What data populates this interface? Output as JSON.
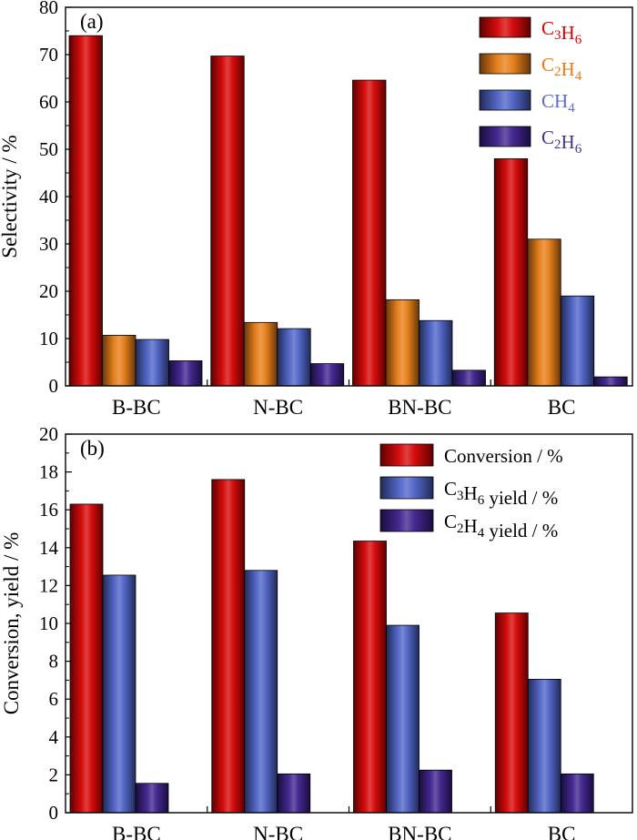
{
  "chart_data": [
    {
      "type": "bar",
      "panel_label": "(a)",
      "categories": [
        "B-BC",
        "N-BC",
        "BN-BC",
        "BC"
      ],
      "ylabel": "Selectivity / %",
      "ylim": [
        0,
        80
      ],
      "yticks": [
        "0",
        "10",
        "20",
        "30",
        "40",
        "50",
        "60",
        "70",
        "80"
      ],
      "legend_position": "top-right",
      "grid": false,
      "series": [
        {
          "name": "C3H6",
          "name_base": [
            "C",
            "H"
          ],
          "name_subs": [
            "3",
            "6"
          ],
          "color": "#d40000",
          "legend_text_color": "#e00000",
          "values": [
            74,
            69.7,
            64.6,
            48
          ]
        },
        {
          "name": "C2H4",
          "name_base": [
            "C",
            "H"
          ],
          "name_subs": [
            "2",
            "4"
          ],
          "color": "#e67a12",
          "legend_text_color": "#ee7a10",
          "values": [
            10.7,
            13.4,
            18.2,
            31
          ]
        },
        {
          "name": "CH4",
          "name_base": [
            "CH"
          ],
          "name_subs": [
            "4"
          ],
          "color": "#4a5fc4",
          "legend_text_color": "#5a6cd0",
          "values": [
            9.8,
            12.1,
            13.8,
            19
          ]
        },
        {
          "name": "C2H6",
          "name_base": [
            "C",
            "H"
          ],
          "name_subs": [
            "2",
            "6"
          ],
          "color": "#3a1e8a",
          "legend_text_color": "#45328f",
          "values": [
            5.3,
            4.7,
            3.3,
            1.9
          ]
        }
      ]
    },
    {
      "type": "bar",
      "panel_label": "(b)",
      "categories": [
        "B-BC",
        "N-BC",
        "BN-BC",
        "BC"
      ],
      "ylabel": "Conversion, yield / %",
      "ylim": [
        0,
        20
      ],
      "yticks": [
        "0",
        "2",
        "4",
        "6",
        "8",
        "10",
        "12",
        "14",
        "16",
        "18",
        "20"
      ],
      "legend_position": "top-right",
      "grid": false,
      "series": [
        {
          "name": "Conversion / %",
          "name_base": [
            "Conversion / %"
          ],
          "name_subs": [],
          "color": "#d40000",
          "legend_text_color": "#000000",
          "values": [
            16.3,
            17.6,
            14.35,
            10.55
          ]
        },
        {
          "name": "C3H6 yield / %",
          "name_base": [
            "C",
            "H",
            " yield / %"
          ],
          "name_subs": [
            "3",
            "6"
          ],
          "color": "#4a5fc4",
          "legend_text_color": "#000000",
          "values": [
            12.55,
            12.8,
            9.9,
            7.05
          ]
        },
        {
          "name": "C2H4 yield / %",
          "name_base": [
            "C",
            "H",
            " yield / %"
          ],
          "name_subs": [
            "2",
            "4"
          ],
          "color": "#3a1e8a",
          "legend_text_color": "#000000",
          "values": [
            1.55,
            2.05,
            2.25,
            2.05
          ]
        }
      ]
    }
  ]
}
